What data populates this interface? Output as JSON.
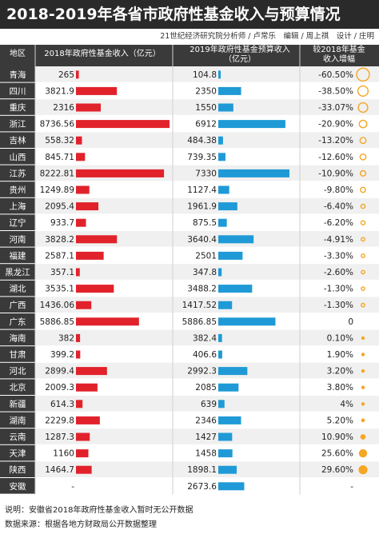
{
  "title": "2018-2019年各省市政府性基金收入与预算情况",
  "credit": "21世纪经济研究院分析师 / 卢常乐　编辑 / 周上祺　设计 / 庄明",
  "header": {
    "region": "地区",
    "col2018": "2018年政府性基金收入（亿元）",
    "col2019_line1": "2019年政府性基金预算收入",
    "col2019_line2": "（亿元）",
    "colGrowth_line1": "较2018年基金",
    "colGrowth_line2": "收入增幅"
  },
  "footer": {
    "note": "说明：安徽省2018年政府性基金收入暂时无公开数据",
    "source": "数据来源：根据各地方财政局公开数据整理"
  },
  "colors": {
    "bar2018": "#e1222b",
    "bar2019": "#1f9ad6",
    "circle": "#f5a623",
    "rowDark": "#3a3a3a",
    "rowLight": "#f0f0f0"
  },
  "chart_data": {
    "type": "table",
    "columns": [
      "地区",
      "2018年政府性基金收入（亿元）",
      "2019年政府性基金预算收入（亿元）",
      "较2018年基金收入增幅"
    ],
    "rows": [
      {
        "region": "青海",
        "v2018": 265,
        "l2018": "265",
        "v2019": 104.8,
        "l2019": "104.8",
        "growth": -60.5,
        "lg": "-60.50%"
      },
      {
        "region": "四川",
        "v2018": 3821.9,
        "l2018": "3821.9",
        "v2019": 2350,
        "l2019": "2350",
        "growth": -38.5,
        "lg": "-38.50%"
      },
      {
        "region": "重庆",
        "v2018": 2316,
        "l2018": "2316",
        "v2019": 1550,
        "l2019": "1550",
        "growth": -33.07,
        "lg": "-33.07%"
      },
      {
        "region": "浙江",
        "v2018": 8736.56,
        "l2018": "8736.56",
        "v2019": 6912,
        "l2019": "6912",
        "growth": -20.9,
        "lg": "-20.90%"
      },
      {
        "region": "吉林",
        "v2018": 558.32,
        "l2018": "558.32",
        "v2019": 484.38,
        "l2019": "484.38",
        "growth": -13.2,
        "lg": "-13.20%"
      },
      {
        "region": "山西",
        "v2018": 845.71,
        "l2018": "845.71",
        "v2019": 739.35,
        "l2019": "739.35",
        "growth": -12.6,
        "lg": "-12.60%"
      },
      {
        "region": "江苏",
        "v2018": 8222.81,
        "l2018": "8222.81",
        "v2019": 7330,
        "l2019": "7330",
        "growth": -10.9,
        "lg": "-10.90%"
      },
      {
        "region": "贵州",
        "v2018": 1249.89,
        "l2018": "1249.89",
        "v2019": 1127.4,
        "l2019": "1127.4",
        "growth": -9.8,
        "lg": "-9.80%"
      },
      {
        "region": "上海",
        "v2018": 2095.4,
        "l2018": "2095.4",
        "v2019": 1961.9,
        "l2019": "1961.9",
        "growth": -6.4,
        "lg": "-6.40%"
      },
      {
        "region": "辽宁",
        "v2018": 933.7,
        "l2018": "933.7",
        "v2019": 875.5,
        "l2019": "875.5",
        "growth": -6.2,
        "lg": "-6.20%"
      },
      {
        "region": "河南",
        "v2018": 3828.2,
        "l2018": "3828.2",
        "v2019": 3640.4,
        "l2019": "3640.4",
        "growth": -4.91,
        "lg": "-4.91%"
      },
      {
        "region": "福建",
        "v2018": 2587.1,
        "l2018": "2587.1",
        "v2019": 2501,
        "l2019": "2501",
        "growth": -3.3,
        "lg": "-3.30%"
      },
      {
        "region": "黑龙江",
        "v2018": 357.1,
        "l2018": "357.1",
        "v2019": 347.8,
        "l2019": "347.8",
        "growth": -2.6,
        "lg": "-2.60%"
      },
      {
        "region": "湖北",
        "v2018": 3535.1,
        "l2018": "3535.1",
        "v2019": 3488.2,
        "l2019": "3488.2",
        "growth": -1.3,
        "lg": "-1.30%"
      },
      {
        "region": "广西",
        "v2018": 1436.06,
        "l2018": "1436.06",
        "v2019": 1417.52,
        "l2019": "1417.52",
        "growth": -1.3,
        "lg": "-1.30%"
      },
      {
        "region": "广东",
        "v2018": 5886.85,
        "l2018": "5886.85",
        "v2019": 5886.85,
        "l2019": "5886.85",
        "growth": 0,
        "lg": "0"
      },
      {
        "region": "海南",
        "v2018": 382,
        "l2018": "382",
        "v2019": 382.4,
        "l2019": "382.4",
        "growth": 0.1,
        "lg": "0.10%"
      },
      {
        "region": "甘肃",
        "v2018": 399.2,
        "l2018": "399.2",
        "v2019": 406.6,
        "l2019": "406.6",
        "growth": 1.9,
        "lg": "1.90%"
      },
      {
        "region": "河北",
        "v2018": 2899.4,
        "l2018": "2899.4",
        "v2019": 2992.3,
        "l2019": "2992.3",
        "growth": 3.2,
        "lg": "3.20%"
      },
      {
        "region": "北京",
        "v2018": 2009.3,
        "l2018": "2009.3",
        "v2019": 2085,
        "l2019": "2085",
        "growth": 3.8,
        "lg": "3.80%"
      },
      {
        "region": "新疆",
        "v2018": 614.3,
        "l2018": "614.3",
        "v2019": 639,
        "l2019": "639",
        "growth": 4,
        "lg": "4%"
      },
      {
        "region": "湖南",
        "v2018": 2229.8,
        "l2018": "2229.8",
        "v2019": 2346,
        "l2019": "2346",
        "growth": 5.2,
        "lg": "5.20%"
      },
      {
        "region": "云南",
        "v2018": 1287.3,
        "l2018": "1287.3",
        "v2019": 1427,
        "l2019": "1427",
        "growth": 10.9,
        "lg": "10.90%"
      },
      {
        "region": "天津",
        "v2018": 1160,
        "l2018": "1160",
        "v2019": 1458,
        "l2019": "1458",
        "growth": 25.6,
        "lg": "25.60%"
      },
      {
        "region": "陕西",
        "v2018": 1464.7,
        "l2018": "1464.7",
        "v2019": 1898.1,
        "l2019": "1898.1",
        "growth": 29.6,
        "lg": "29.60%"
      },
      {
        "region": "安徽",
        "v2018": null,
        "l2018": "-",
        "v2019": 2673.6,
        "l2019": "2673.6",
        "growth": null,
        "lg": "-"
      }
    ]
  }
}
